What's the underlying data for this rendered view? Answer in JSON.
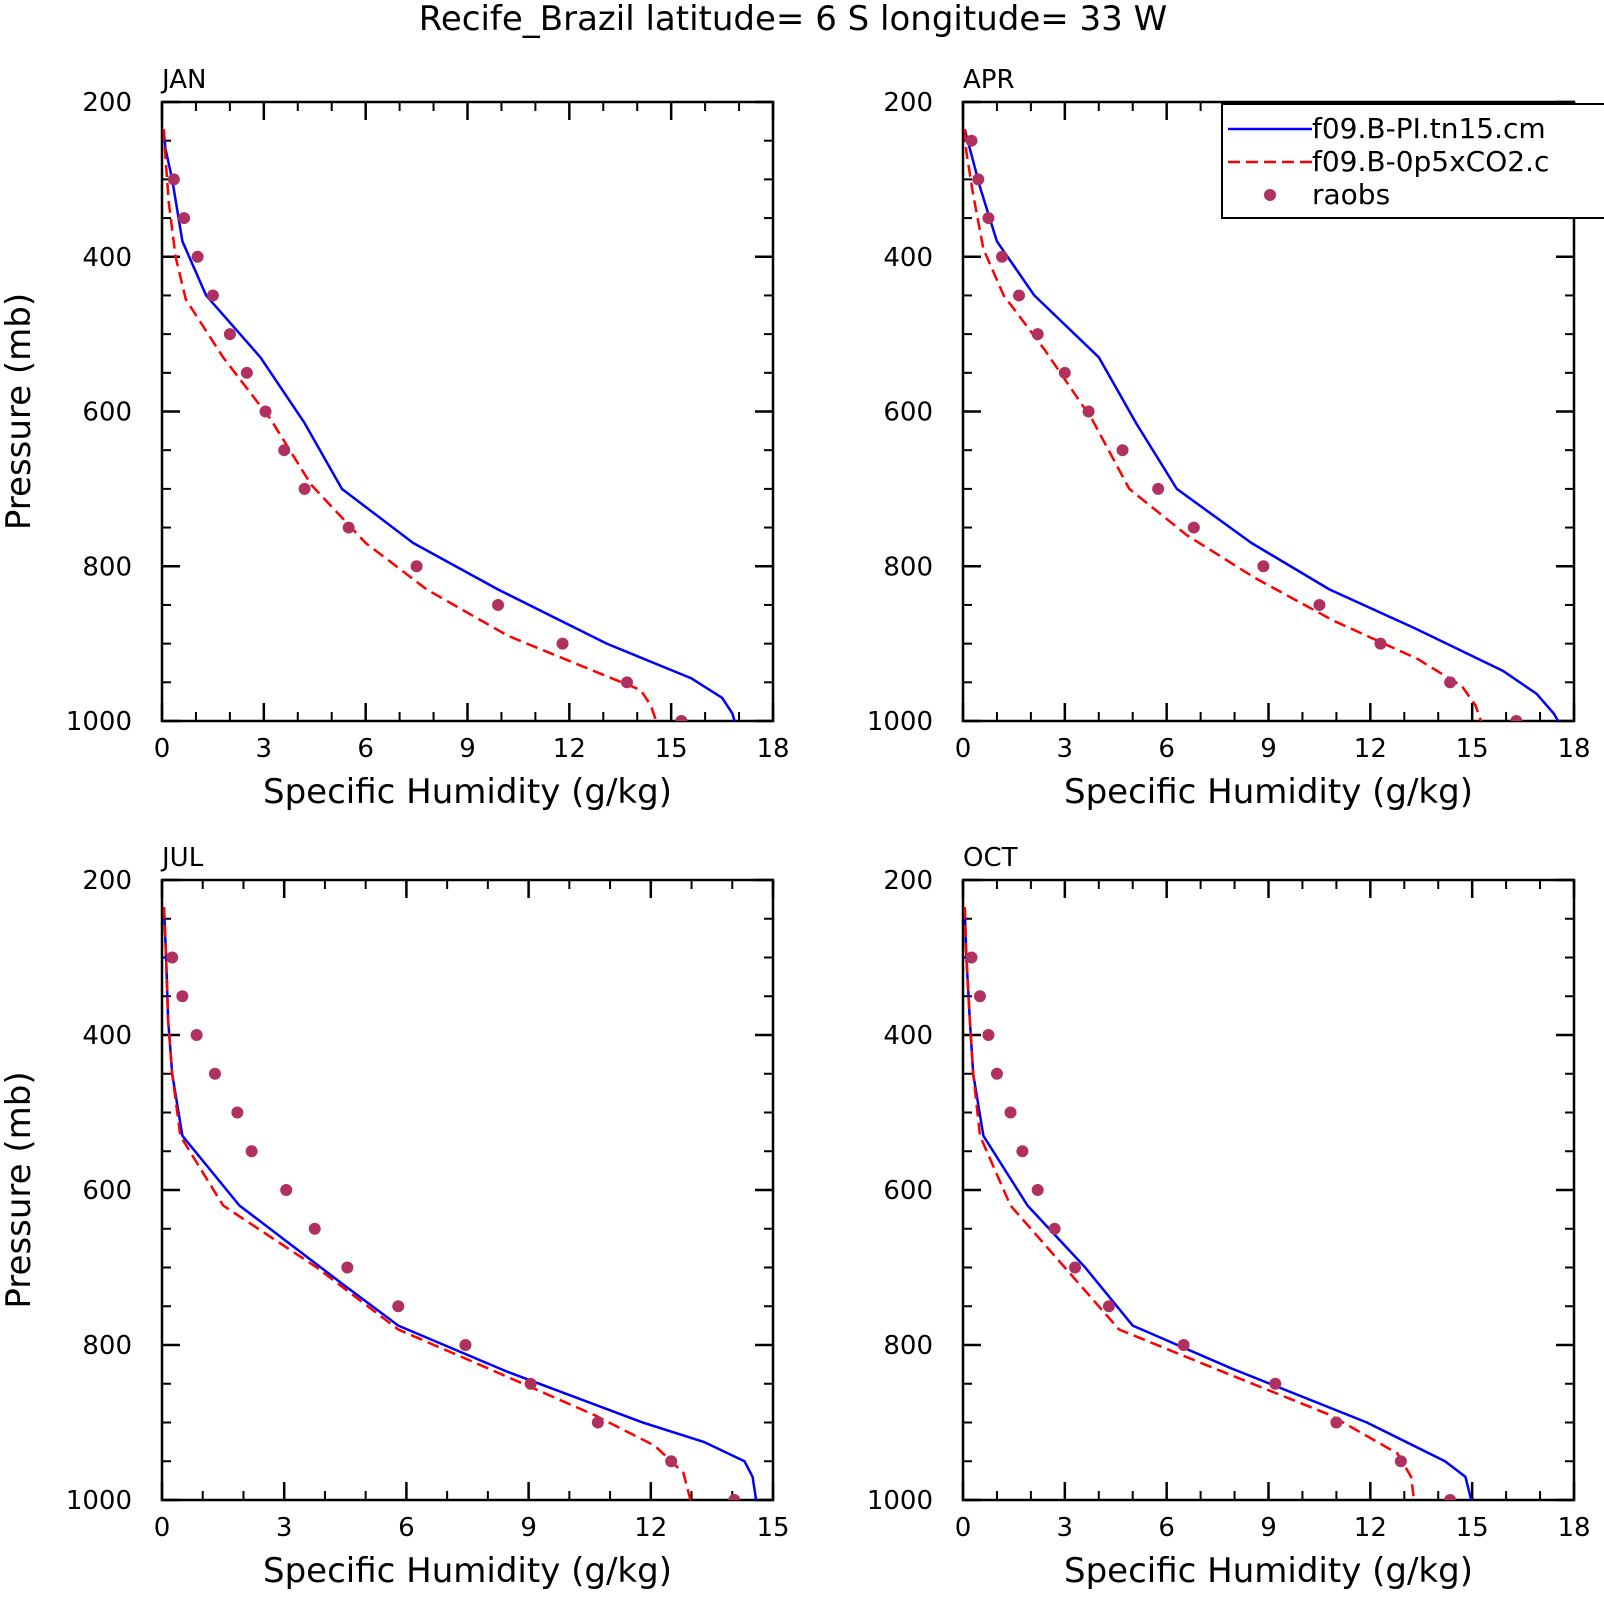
{
  "figure": {
    "title": "Recife_Brazil  latitude= 6 S longitude= 33 W"
  },
  "legend": {
    "placement": "top-right of APR panel (clipped at figure edge)",
    "entries": [
      {
        "label": "f09.B-PI.tn15.cm",
        "color": "#0000ff",
        "style": "solid line"
      },
      {
        "label": "f09.B-0p5xCO2.c",
        "color": "#ff0000",
        "style": "dashed line"
      },
      {
        "label": "raobs",
        "color": "#b03060",
        "style": "dots"
      }
    ]
  },
  "colors": {
    "model_pi": "#0000ff",
    "model_co2": "#ff0000",
    "raobs": "#b03060"
  },
  "chart_data": [
    {
      "type": "line",
      "panel": "JAN",
      "xlabel": "Specific Humidity (g/kg)",
      "ylabel": "Pressure (mb)",
      "xlim": [
        0,
        18
      ],
      "ylim": [
        1000,
        200
      ],
      "xticks": [
        0,
        3,
        6,
        9,
        12,
        15,
        18
      ],
      "yticks": [
        200,
        400,
        600,
        800,
        1000
      ],
      "grid": false,
      "series": [
        {
          "name": "f09.B-PI.tn15.cm",
          "x": [
            0.05,
            0.1,
            0.3,
            0.6,
            1.3,
            2.9,
            4.2,
            5.3,
            7.4,
            9.9,
            13.1,
            15.6,
            16.5,
            16.8,
            16.9
          ],
          "y": [
            235,
            260,
            300,
            380,
            450,
            530,
            615,
            700,
            770,
            830,
            900,
            945,
            970,
            990,
            1005
          ]
        },
        {
          "name": "f09.B-0p5xCO2.c",
          "x": [
            0.05,
            0.1,
            0.2,
            0.4,
            0.7,
            1.8,
            3.2,
            4.4,
            6.0,
            7.8,
            10.2,
            12.7,
            14.1,
            14.4,
            14.6
          ],
          "y": [
            235,
            270,
            330,
            400,
            455,
            530,
            610,
            695,
            770,
            830,
            890,
            935,
            960,
            980,
            1005
          ]
        },
        {
          "name": "raobs",
          "x": [
            0.35,
            0.65,
            1.05,
            1.5,
            2.0,
            2.5,
            3.05,
            3.6,
            4.2,
            5.5,
            7.5,
            9.9,
            11.8,
            13.7,
            15.3
          ],
          "y": [
            300,
            350,
            400,
            450,
            500,
            550,
            600,
            650,
            700,
            750,
            800,
            850,
            900,
            950,
            1000
          ]
        }
      ]
    },
    {
      "type": "line",
      "panel": "APR",
      "xlabel": "Specific Humidity (g/kg)",
      "ylabel": "",
      "xlim": [
        0,
        18
      ],
      "ylim": [
        1000,
        200
      ],
      "xticks": [
        0,
        3,
        6,
        9,
        12,
        15,
        18
      ],
      "yticks": [
        200,
        400,
        600,
        800,
        1000
      ],
      "grid": false,
      "series": [
        {
          "name": "f09.B-PI.tn15.cm",
          "x": [
            0.05,
            0.2,
            0.5,
            1.0,
            2.1,
            4.0,
            5.1,
            6.3,
            8.5,
            10.8,
            13.3,
            15.9,
            16.9,
            17.4,
            17.6
          ],
          "y": [
            235,
            260,
            310,
            380,
            450,
            530,
            615,
            700,
            770,
            830,
            880,
            935,
            965,
            990,
            1005
          ]
        },
        {
          "name": "f09.B-0p5xCO2.c",
          "x": [
            0.05,
            0.1,
            0.3,
            0.6,
            1.2,
            2.4,
            3.8,
            4.9,
            6.6,
            8.6,
            10.9,
            13.4,
            14.7,
            15.1,
            15.3
          ],
          "y": [
            235,
            265,
            320,
            390,
            450,
            520,
            610,
            700,
            760,
            815,
            870,
            920,
            955,
            980,
            1005
          ]
        },
        {
          "name": "raobs",
          "x": [
            0.25,
            0.45,
            0.75,
            1.15,
            1.65,
            2.2,
            3.0,
            3.7,
            4.7,
            5.75,
            6.8,
            8.85,
            10.5,
            12.3,
            14.35,
            16.3
          ],
          "y": [
            250,
            300,
            350,
            400,
            450,
            500,
            550,
            600,
            650,
            700,
            750,
            800,
            850,
            900,
            950,
            1000
          ]
        }
      ]
    },
    {
      "type": "line",
      "panel": "JUL",
      "xlabel": "Specific Humidity (g/kg)",
      "ylabel": "Pressure (mb)",
      "xlim": [
        0,
        15
      ],
      "ylim": [
        1000,
        200
      ],
      "xticks": [
        0,
        3,
        6,
        9,
        12,
        15
      ],
      "yticks": [
        200,
        400,
        600,
        800,
        1000
      ],
      "grid": false,
      "series": [
        {
          "name": "f09.B-PI.tn15.cm",
          "x": [
            0.05,
            0.1,
            0.15,
            0.25,
            0.5,
            1.9,
            4.4,
            5.8,
            8.5,
            11.8,
            13.3,
            14.3,
            14.5,
            14.6
          ],
          "y": [
            235,
            300,
            380,
            450,
            530,
            620,
            720,
            775,
            835,
            900,
            925,
            950,
            970,
            1005
          ]
        },
        {
          "name": "f09.B-0p5xCO2.c",
          "x": [
            0.05,
            0.1,
            0.15,
            0.25,
            0.45,
            1.5,
            3.8,
            5.8,
            8.0,
            10.6,
            12.1,
            12.8,
            13.0
          ],
          "y": [
            235,
            300,
            380,
            450,
            530,
            620,
            700,
            780,
            830,
            890,
            930,
            965,
            1005
          ]
        },
        {
          "name": "raobs",
          "x": [
            0.25,
            0.5,
            0.85,
            1.3,
            1.85,
            2.2,
            3.05,
            3.75,
            4.55,
            5.8,
            7.45,
            9.05,
            10.7,
            12.5,
            14.05
          ],
          "y": [
            300,
            350,
            400,
            450,
            500,
            550,
            600,
            650,
            700,
            750,
            800,
            850,
            900,
            950,
            1000
          ]
        }
      ]
    },
    {
      "type": "line",
      "panel": "OCT",
      "xlabel": "Specific Humidity (g/kg)",
      "ylabel": "",
      "xlim": [
        0,
        18
      ],
      "ylim": [
        1000,
        200
      ],
      "xticks": [
        0,
        3,
        6,
        9,
        12,
        15,
        18
      ],
      "yticks": [
        200,
        400,
        600,
        800,
        1000
      ],
      "grid": false,
      "series": [
        {
          "name": "f09.B-PI.tn15.cm",
          "x": [
            0.05,
            0.1,
            0.2,
            0.3,
            0.6,
            1.9,
            3.6,
            5.0,
            7.9,
            11.9,
            14.2,
            14.8,
            15.0
          ],
          "y": [
            235,
            300,
            380,
            450,
            530,
            620,
            700,
            775,
            830,
            900,
            950,
            970,
            1005
          ]
        },
        {
          "name": "f09.B-0p5xCO2.c",
          "x": [
            0.05,
            0.1,
            0.2,
            0.3,
            0.5,
            1.4,
            3.0,
            4.6,
            7.4,
            10.8,
            12.8,
            13.2,
            13.3
          ],
          "y": [
            235,
            300,
            380,
            450,
            530,
            620,
            700,
            780,
            830,
            890,
            940,
            970,
            1005
          ]
        },
        {
          "name": "raobs",
          "x": [
            0.25,
            0.5,
            0.75,
            1.0,
            1.4,
            1.75,
            2.2,
            2.7,
            3.3,
            4.3,
            6.5,
            9.2,
            11.0,
            12.9,
            14.35
          ],
          "y": [
            300,
            350,
            400,
            450,
            500,
            550,
            600,
            650,
            700,
            750,
            800,
            850,
            900,
            950,
            1000
          ]
        }
      ]
    }
  ]
}
